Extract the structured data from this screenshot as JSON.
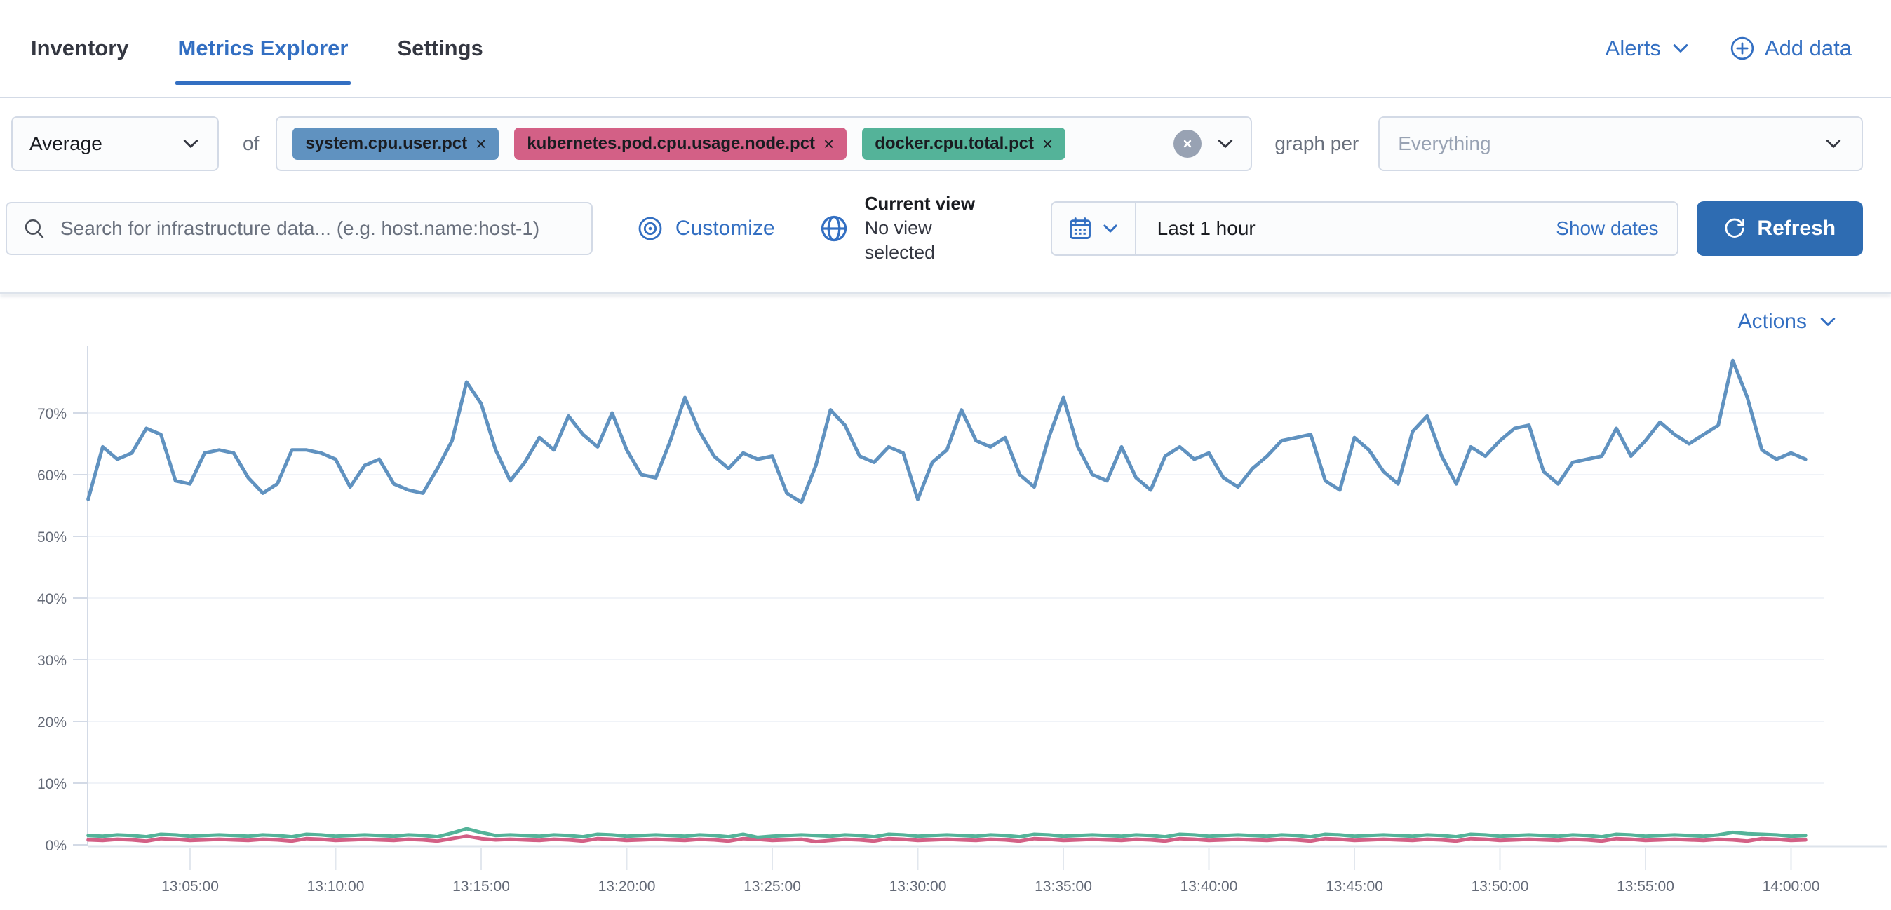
{
  "glyphs": {
    "close": "×"
  },
  "nav": {
    "tabs": [
      {
        "label": "Inventory"
      },
      {
        "label": "Metrics Explorer"
      },
      {
        "label": "Settings"
      }
    ],
    "alerts_label": "Alerts",
    "add_data_label": "Add data"
  },
  "toolbar": {
    "aggregation": "Average",
    "of_label": "of",
    "metrics": [
      {
        "label": "system.cpu.user.pct",
        "color": "#6092C0"
      },
      {
        "label": "kubernetes.pod.cpu.usage.node.pct",
        "color": "#D36086"
      },
      {
        "label": "docker.cpu.total.pct",
        "color": "#54B399"
      }
    ],
    "graph_per_label": "graph per",
    "graph_per_placeholder": "Everything"
  },
  "filterbar": {
    "search_placeholder": "Search for infrastructure data... (e.g. host.name:host-1)",
    "customize_label": "Customize",
    "current_view_title": "Current view",
    "current_view_value": "No view selected",
    "time_range": "Last 1 hour",
    "show_dates_label": "Show dates",
    "refresh_label": "Refresh"
  },
  "chart": {
    "actions_label": "Actions"
  },
  "chart_data": {
    "type": "line",
    "title": "",
    "xlabel": "",
    "ylabel": "",
    "grid": true,
    "legend": "none",
    "ylim": [
      0,
      79
    ],
    "y_ticks": [
      0,
      10,
      20,
      30,
      40,
      50,
      60,
      70
    ],
    "y_tick_suffix": "%",
    "x_start": "13:01:30",
    "x_interval_seconds": 30,
    "x_tick_labels": [
      "13:05:00",
      "13:10:00",
      "13:15:00",
      "13:20:00",
      "13:25:00",
      "13:30:00",
      "13:35:00",
      "13:40:00",
      "13:45:00",
      "13:50:00",
      "13:55:00",
      "14:00:00"
    ],
    "series": [
      {
        "name": "system.cpu.user.pct (avg)",
        "color": "#6092C0",
        "values": [
          56,
          64.5,
          62.5,
          63.5,
          67.5,
          66.5,
          59,
          58.5,
          63.5,
          64,
          63.5,
          59.5,
          57,
          58.5,
          64,
          64,
          63.5,
          62.5,
          58,
          61.5,
          62.5,
          58.5,
          57.5,
          57,
          61,
          65.5,
          75,
          71.5,
          64,
          59,
          62,
          66,
          64,
          69.5,
          66.5,
          64.5,
          70,
          64,
          60,
          59.5,
          65.5,
          72.5,
          67,
          63,
          61,
          63.5,
          62.5,
          63,
          57,
          55.5,
          61.5,
          70.5,
          68,
          63,
          62,
          64.5,
          63.5,
          56,
          62,
          64,
          70.5,
          65.5,
          64.5,
          66,
          60,
          58,
          66,
          72.5,
          64.5,
          60,
          59,
          64.5,
          59.5,
          57.5,
          63,
          64.5,
          62.5,
          63.5,
          59.5,
          58,
          61,
          63,
          65.5,
          66,
          66.5,
          59,
          57.5,
          66,
          64,
          60.5,
          58.5,
          67,
          69.5,
          63,
          58.5,
          64.5,
          63,
          65.5,
          67.5,
          68,
          60.5,
          58.5,
          62,
          62.5,
          63,
          67.5,
          63,
          65.5,
          68.5,
          66.5,
          65,
          66.5,
          68,
          78.5,
          72.5,
          64,
          62.5,
          63.5,
          62.5
        ]
      },
      {
        "name": "kubernetes.pod.cpu.usage.node.pct (avg)",
        "color": "#D36086",
        "values": [
          0.8,
          0.7,
          0.9,
          0.8,
          0.6,
          1.0,
          0.9,
          0.7,
          0.8,
          0.9,
          0.8,
          0.7,
          0.9,
          0.8,
          0.6,
          1.0,
          0.9,
          0.7,
          0.8,
          0.9,
          0.8,
          0.7,
          0.9,
          0.8,
          0.6,
          1.0,
          1.4,
          1.0,
          0.8,
          0.9,
          0.8,
          0.7,
          0.9,
          0.8,
          0.6,
          1.0,
          0.9,
          0.7,
          0.8,
          0.9,
          0.8,
          0.7,
          0.9,
          0.8,
          0.6,
          1.0,
          0.9,
          0.7,
          0.8,
          0.9,
          0.5,
          0.7,
          0.9,
          0.8,
          0.6,
          1.0,
          0.9,
          0.7,
          0.8,
          0.9,
          0.8,
          0.7,
          0.9,
          0.8,
          0.6,
          1.0,
          0.9,
          0.7,
          0.8,
          0.9,
          0.8,
          0.7,
          0.9,
          0.8,
          0.6,
          1.0,
          0.9,
          0.7,
          0.8,
          0.9,
          0.8,
          0.7,
          0.9,
          0.8,
          0.6,
          1.0,
          0.9,
          0.7,
          0.8,
          0.9,
          0.8,
          0.7,
          0.9,
          0.8,
          0.6,
          1.0,
          0.9,
          0.7,
          0.8,
          0.9,
          0.8,
          0.7,
          0.9,
          0.8,
          0.6,
          1.0,
          0.9,
          0.7,
          0.8,
          0.9,
          0.8,
          0.7,
          0.9,
          0.8,
          0.6,
          1.0,
          0.9,
          0.7,
          0.8
        ]
      },
      {
        "name": "docker.cpu.total.pct (avg)",
        "color": "#54B399",
        "values": [
          1.5,
          1.4,
          1.6,
          1.5,
          1.3,
          1.7,
          1.6,
          1.4,
          1.5,
          1.6,
          1.5,
          1.4,
          1.6,
          1.5,
          1.3,
          1.7,
          1.6,
          1.4,
          1.5,
          1.6,
          1.5,
          1.4,
          1.6,
          1.5,
          1.3,
          1.9,
          2.6,
          2.0,
          1.5,
          1.6,
          1.5,
          1.4,
          1.6,
          1.5,
          1.3,
          1.7,
          1.6,
          1.4,
          1.5,
          1.6,
          1.5,
          1.4,
          1.6,
          1.5,
          1.3,
          1.7,
          1.2,
          1.4,
          1.5,
          1.6,
          1.5,
          1.4,
          1.6,
          1.5,
          1.3,
          1.7,
          1.6,
          1.4,
          1.5,
          1.6,
          1.5,
          1.4,
          1.6,
          1.5,
          1.3,
          1.7,
          1.6,
          1.4,
          1.5,
          1.6,
          1.5,
          1.4,
          1.6,
          1.5,
          1.3,
          1.7,
          1.6,
          1.4,
          1.5,
          1.6,
          1.5,
          1.4,
          1.6,
          1.5,
          1.3,
          1.7,
          1.6,
          1.4,
          1.5,
          1.6,
          1.5,
          1.4,
          1.6,
          1.5,
          1.3,
          1.7,
          1.6,
          1.4,
          1.5,
          1.6,
          1.5,
          1.4,
          1.6,
          1.5,
          1.3,
          1.7,
          1.6,
          1.4,
          1.5,
          1.6,
          1.5,
          1.4,
          1.6,
          2.0,
          1.8,
          1.7,
          1.6,
          1.4,
          1.5
        ]
      }
    ]
  }
}
